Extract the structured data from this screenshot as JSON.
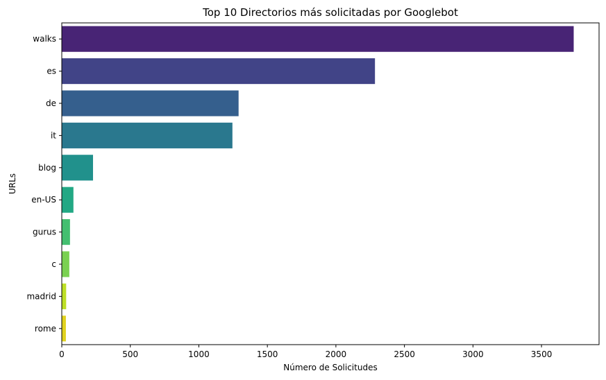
{
  "chart_data": {
    "type": "bar",
    "orientation": "horizontal",
    "title": "Top 10 Directorios más solicitadas por Googlebot",
    "xlabel": "Número de Solicitudes",
    "ylabel": "URLs",
    "categories": [
      "walks",
      "es",
      "de",
      "it",
      "blog",
      "en-US",
      "gurus",
      "c",
      "madrid",
      "rome"
    ],
    "values": [
      3735,
      2285,
      1290,
      1245,
      228,
      85,
      60,
      55,
      32,
      30
    ],
    "colors": [
      "#482475",
      "#414487",
      "#355f8d",
      "#2a788e",
      "#21918c",
      "#22a884",
      "#44bf70",
      "#7ad151",
      "#bddf26",
      "#e0d21f"
    ],
    "xlim": [
      0,
      3920
    ],
    "xticks": [
      0,
      500,
      1000,
      1500,
      2000,
      2500,
      3000,
      3500
    ],
    "grid": false,
    "legend": "none"
  }
}
